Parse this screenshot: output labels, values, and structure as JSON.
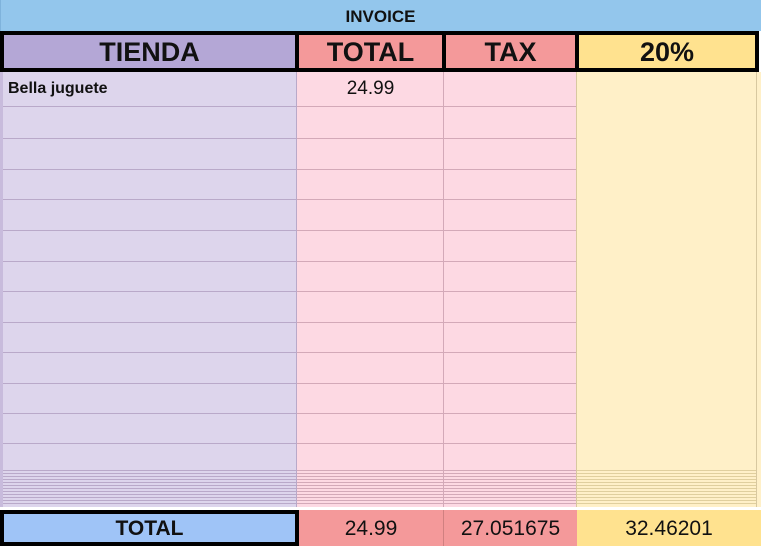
{
  "title": "INVOICE",
  "headers": {
    "store": "TIENDA",
    "total": "TOTAL",
    "tax": "TAX",
    "percent": "20%"
  },
  "rows": [
    {
      "store": "Bella juguete",
      "total": "24.99",
      "tax": "",
      "percent": ""
    }
  ],
  "totals": {
    "label": "TOTAL",
    "total": "24.99",
    "tax": "27.051675",
    "percent": "32.46201"
  },
  "colors": {
    "title": "#93c6ec",
    "store_header": "#b4a7d6",
    "store_body": "#ddd5ec",
    "total_header": "#f4999a",
    "total_body": "#fdd9e3",
    "percent_header": "#ffe28f",
    "percent_body": "#fff0c8",
    "totals_label": "#9fc4f7"
  }
}
